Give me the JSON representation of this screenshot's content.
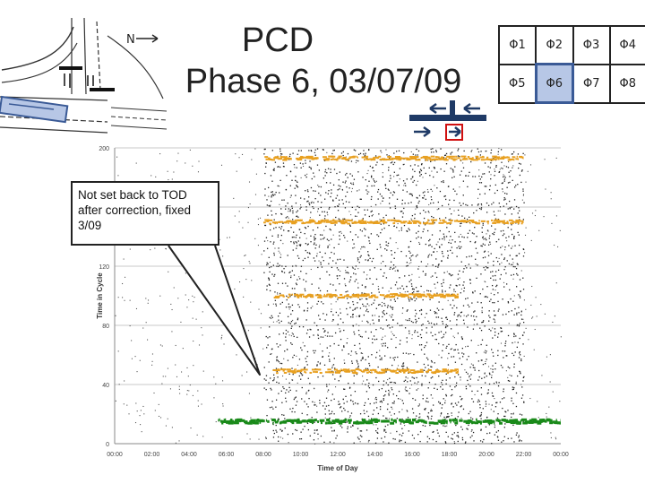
{
  "slide": {
    "title_line1": "PCD",
    "title_line2": "Phase 6, 03/07/09",
    "north_label": "N",
    "callout": "Not set back to TOD after correction, fixed 3/09"
  },
  "phase_grid": {
    "row1": [
      "Φ1",
      "Φ2",
      "Φ3",
      "Φ4"
    ],
    "row2": [
      "Φ5",
      "Φ6",
      "Φ7",
      "Φ8"
    ],
    "highlighted": "Φ6",
    "highlight_color": "#b7c7e6"
  },
  "chart_data": {
    "type": "scatter",
    "xlabel": "Time of Day",
    "ylabel": "Time in Cycle",
    "x_ticks": [
      "00:00",
      "02:00",
      "04:00",
      "06:00",
      "08:00",
      "10:00",
      "12:00",
      "14:00",
      "16:00",
      "18:00",
      "20:00",
      "22:00",
      "00:00"
    ],
    "x_range_hours": [
      0,
      24
    ],
    "y_ticks": [
      0,
      40,
      80,
      120,
      160,
      200
    ],
    "ylim": [
      0,
      200
    ],
    "grid": "horizontal",
    "series": [
      {
        "color": "#e8a020",
        "bands": [
          {
            "y": 193,
            "x_start": 8,
            "x_end": 22
          },
          {
            "y": 150,
            "x_start": 8,
            "x_end": 22
          },
          {
            "y": 100,
            "x_start": 8.5,
            "x_end": 18.5
          },
          {
            "y": 49,
            "x_start": 8.5,
            "x_end": 18.5
          }
        ]
      },
      {
        "color": "#1a8a1a",
        "bands": [
          {
            "y": 15,
            "x_start": 5.5,
            "x_end": 24
          }
        ]
      },
      {
        "color": "#222222",
        "description_points": "arrivals",
        "clusters": [
          {
            "x_start": 8,
            "x_end": 22,
            "y_min": 0,
            "y_max": 200
          },
          {
            "x_start": 0,
            "x_end": 24,
            "y_min": 0,
            "y_max": 200
          }
        ]
      }
    ]
  }
}
